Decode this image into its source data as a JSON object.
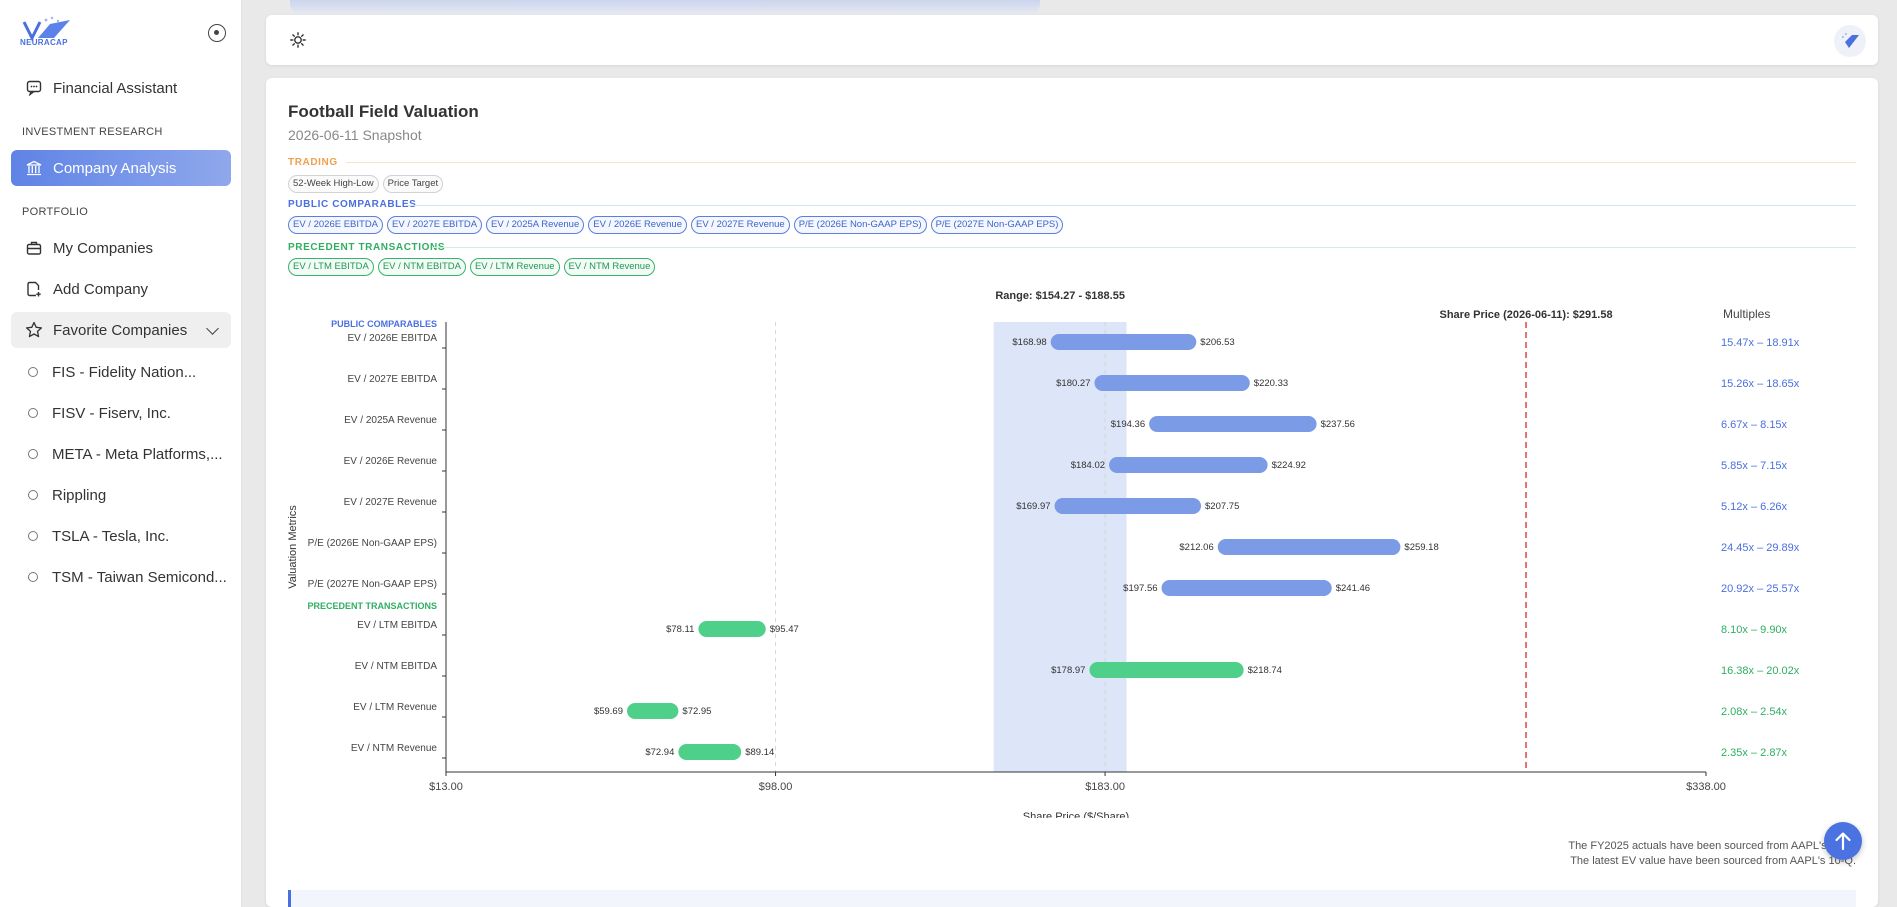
{
  "app": {
    "logo_text": "NEURACAP"
  },
  "sidebar": {
    "financial_assistant": "Financial Assistant",
    "investment_research_label": "INVESTMENT RESEARCH",
    "company_analysis": "Company Analysis",
    "portfolio_label": "PORTFOLIO",
    "my_companies": "My Companies",
    "add_company": "Add Company",
    "favorite_companies": "Favorite Companies",
    "favorites": [
      "FIS - Fidelity Nation...",
      "FISV - Fiserv, Inc.",
      "META - Meta Platforms,...",
      "Rippling",
      "TSLA - Tesla, Inc.",
      "TSM - Taiwan Semicond..."
    ]
  },
  "page": {
    "title": "Football Field Valuation",
    "subtitle": "2026-06-11 Snapshot",
    "groups": {
      "trading": {
        "label": "TRADING",
        "chips": [
          "52-Week High-Low",
          "Price Target"
        ]
      },
      "public": {
        "label": "PUBLIC COMPARABLES",
        "chips": [
          "EV / 2026E EBITDA",
          "EV / 2027E EBITDA",
          "EV / 2025A Revenue",
          "EV / 2026E Revenue",
          "EV / 2027E Revenue",
          "P/E (2026E Non-GAAP EPS)",
          "P/E (2027E Non-GAAP EPS)"
        ]
      },
      "precedent": {
        "label": "PRECEDENT TRANSACTIONS",
        "chips": [
          "EV / LTM EBITDA",
          "EV / NTM EBITDA",
          "EV / LTM Revenue",
          "EV / NTM Revenue"
        ]
      }
    },
    "footnotes": [
      "The FY2025 actuals have been sourced from AAPL's 10-K.",
      "The latest EV value have been sourced from AAPL's 10-Q."
    ]
  },
  "chart_data": {
    "type": "bar",
    "orientation": "horizontal-range",
    "range_label": "Range: $154.27 - $188.55",
    "range": [
      154.27,
      188.55
    ],
    "share_price_label": "Share Price (2026-06-11): $291.58",
    "share_price": 291.58,
    "multiples_header": "Multiples",
    "xlabel": "Share Price ($/Share)",
    "ylabel": "Valuation Metrics",
    "xlim": [
      13,
      338
    ],
    "xticks": [
      13,
      98,
      183,
      338
    ],
    "xtick_labels": [
      "$13.00",
      "$98.00",
      "$183.00",
      "$338.00"
    ],
    "group_labels": {
      "public": "PUBLIC COMPARABLES",
      "precedent": "PRECEDENT TRANSACTIONS"
    },
    "colors": {
      "public": "#7b9be6",
      "precedent": "#4fd08a",
      "share_price": "#e24545",
      "range": "#dde5f8"
    },
    "rows": [
      {
        "group": "public",
        "label": "EV / 2026E EBITDA",
        "low": 168.98,
        "high": 206.53,
        "low_label": "$168.98",
        "high_label": "$206.53",
        "multiple": "15.47x – 18.91x"
      },
      {
        "group": "public",
        "label": "EV / 2027E EBITDA",
        "low": 180.27,
        "high": 220.33,
        "low_label": "$180.27",
        "high_label": "$220.33",
        "multiple": "15.26x – 18.65x"
      },
      {
        "group": "public",
        "label": "EV / 2025A Revenue",
        "low": 194.36,
        "high": 237.56,
        "low_label": "$194.36",
        "high_label": "$237.56",
        "multiple": "6.67x – 8.15x"
      },
      {
        "group": "public",
        "label": "EV / 2026E Revenue",
        "low": 184.02,
        "high": 224.92,
        "low_label": "$184.02",
        "high_label": "$224.92",
        "multiple": "5.85x – 7.15x"
      },
      {
        "group": "public",
        "label": "EV / 2027E Revenue",
        "low": 169.97,
        "high": 207.75,
        "low_label": "$169.97",
        "high_label": "$207.75",
        "multiple": "5.12x – 6.26x"
      },
      {
        "group": "public",
        "label": "P/E (2026E Non-GAAP EPS)",
        "low": 212.06,
        "high": 259.18,
        "low_label": "$212.06",
        "high_label": "$259.18",
        "multiple": "24.45x – 29.89x"
      },
      {
        "group": "public",
        "label": "P/E (2027E Non-GAAP EPS)",
        "low": 197.56,
        "high": 241.46,
        "low_label": "$197.56",
        "high_label": "$241.46",
        "multiple": "20.92x – 25.57x"
      },
      {
        "group": "precedent",
        "label": "EV / LTM EBITDA",
        "low": 78.11,
        "high": 95.47,
        "low_label": "$78.11",
        "high_label": "$95.47",
        "multiple": "8.10x – 9.90x"
      },
      {
        "group": "precedent",
        "label": "EV / NTM EBITDA",
        "low": 178.97,
        "high": 218.74,
        "low_label": "$178.97",
        "high_label": "$218.74",
        "multiple": "16.38x – 20.02x"
      },
      {
        "group": "precedent",
        "label": "EV / LTM Revenue",
        "low": 59.69,
        "high": 72.95,
        "low_label": "$59.69",
        "high_label": "$72.95",
        "multiple": "2.08x – 2.54x"
      },
      {
        "group": "precedent",
        "label": "EV / NTM Revenue",
        "low": 72.94,
        "high": 89.14,
        "low_label": "$72.94",
        "high_label": "$89.14",
        "multiple": "2.35x – 2.87x"
      }
    ]
  }
}
